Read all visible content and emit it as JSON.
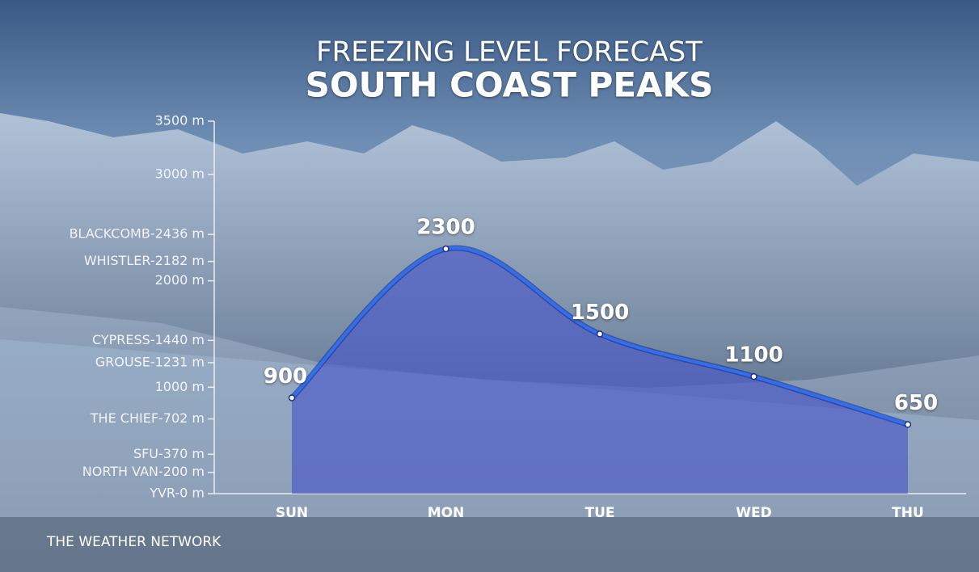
{
  "chart_data": {
    "type": "line",
    "subtitle": "FREEZING LEVEL FORECAST",
    "title": "SOUTH COAST PEAKS",
    "source": "THE WEATHER NETWORK",
    "categories": [
      "SUN",
      "MON",
      "TUE",
      "WED",
      "THU"
    ],
    "values": [
      900,
      2300,
      1500,
      1100,
      650
    ],
    "color": "#2f6ff0",
    "area_color": "#4a58c8",
    "ylim": [
      0,
      3500
    ],
    "yticks": [
      {
        "value": 0,
        "label": "YVR-0 m"
      },
      {
        "value": 200,
        "label": "NORTH VAN-200 m"
      },
      {
        "value": 370,
        "label": "SFU-370 m"
      },
      {
        "value": 702,
        "label": "THE CHIEF-702 m"
      },
      {
        "value": 1000,
        "label": "1000 m"
      },
      {
        "value": 1231,
        "label": "GROUSE-1231 m"
      },
      {
        "value": 1440,
        "label": "CYPRESS-1440 m"
      },
      {
        "value": 2000,
        "label": "2000 m"
      },
      {
        "value": 2182,
        "label": "WHISTLER-2182 m"
      },
      {
        "value": 2436,
        "label": "BLACKCOMB-2436 m"
      },
      {
        "value": 3000,
        "label": "3000 m"
      },
      {
        "value": 3500,
        "label": "3500 m"
      }
    ]
  }
}
